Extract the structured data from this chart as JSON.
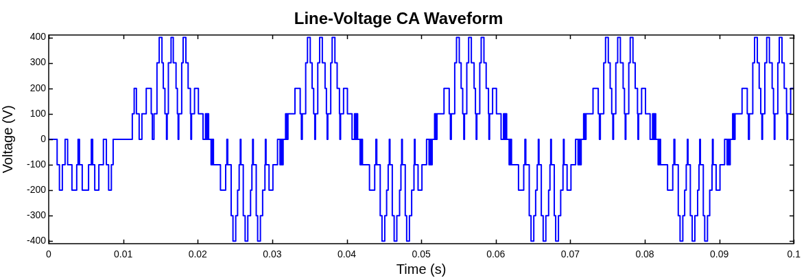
{
  "chart_data": {
    "type": "step",
    "title": "Line-Voltage CA Waveform",
    "xlabel": "Time (s)",
    "ylabel": "Voltage (V)",
    "color": "#0000ff",
    "xlim": [
      0,
      0.1
    ],
    "xticks": [
      0,
      0.01,
      0.02,
      0.03,
      0.04,
      0.05,
      0.06,
      0.07,
      0.08,
      0.09,
      0.1
    ],
    "ylim": [
      -410,
      410
    ],
    "yticks": [
      -400,
      -300,
      -200,
      -100,
      0,
      100,
      200,
      300,
      400
    ],
    "x": [
      0,
      0.00113,
      0.00144,
      0.00183,
      0.0022,
      0.00254,
      0.00312,
      0.00376,
      0.00394,
      0.00401,
      0.00407,
      0.00413,
      0.0045,
      0.00535,
      0.00572,
      0.00578,
      0.00584,
      0.0059,
      0.00618,
      0.00673,
      0.00734,
      0.00774,
      0.00804,
      0.00841,
      0.00865,
      0.01122,
      0.01147,
      0.01177,
      0.01214,
      0.01251,
      0.01309,
      0.01376,
      0.01391,
      0.01413,
      0.01453,
      0.01483,
      0.0152,
      0.01538,
      0.0156,
      0.01581,
      0.0159,
      0.01606,
      0.01642,
      0.01672,
      0.01709,
      0.01727,
      0.01737,
      0.01746,
      0.01785,
      0.01804,
      0.01841,
      0.01871,
      0.01902,
      0.01908,
      0.01917,
      0.01957,
      0.02009,
      0.02071,
      0.02104,
      0.02114,
      0.0212,
      0.0213,
      0.02136,
      0.02146,
      0.02179,
      0.02187,
      0.02195,
      0.02203,
      0.02211,
      0.02305,
      0.02375,
      0.02391,
      0.02403,
      0.02449,
      0.02473,
      0.0251,
      0.02535,
      0.02556,
      0.02571,
      0.0258,
      0.02611,
      0.02636,
      0.02672,
      0.02709,
      0.02727,
      0.02737,
      0.02746,
      0.02785,
      0.02804,
      0.02841,
      0.02871,
      0.02902,
      0.02908,
      0.02917,
      0.02957,
      0.03009,
      0.03071,
      0.03104,
      0.03114,
      0.0312,
      0.0313,
      0.03136,
      0.03146,
      0.03179,
      0.03187,
      0.03195,
      0.03203,
      0.03211,
      0.03305,
      0.03375,
      0.03391,
      0.03403,
      0.03449,
      0.03473,
      0.0351,
      0.03535,
      0.03556,
      0.03571,
      0.0358,
      0.03611,
      0.03636,
      0.03672,
      0.03709,
      0.03727,
      0.03737,
      0.03746,
      0.03785,
      0.03804,
      0.03841,
      0.03871,
      0.03902,
      0.03908,
      0.03917,
      0.03957,
      0.04009,
      0.04071,
      0.04104,
      0.04114,
      0.0412,
      0.0413,
      0.04136,
      0.04146,
      0.04179,
      0.04187,
      0.04195,
      0.04203,
      0.04211,
      0.04305,
      0.04375,
      0.04391,
      0.04403,
      0.04449,
      0.04473,
      0.0451,
      0.04535,
      0.04556,
      0.04571,
      0.0458,
      0.04611,
      0.04636,
      0.04672,
      0.04709,
      0.04727,
      0.04737,
      0.04746,
      0.04785,
      0.04804,
      0.04841,
      0.04871,
      0.04902,
      0.04908,
      0.04917,
      0.04957,
      0.05009,
      0.05071,
      0.05104,
      0.05114,
      0.0512,
      0.0513,
      0.05136,
      0.05146,
      0.05179,
      0.05187,
      0.05195,
      0.05203,
      0.05211,
      0.05305,
      0.05375,
      0.05391,
      0.05403,
      0.05449,
      0.05473,
      0.0551,
      0.05535,
      0.05556,
      0.05571,
      0.0558,
      0.05611,
      0.05636,
      0.05672,
      0.05709,
      0.05727,
      0.05737,
      0.05746,
      0.05785,
      0.05804,
      0.05841,
      0.05871,
      0.05902,
      0.05908,
      0.05917,
      0.05957,
      0.06009,
      0.06071,
      0.06104,
      0.06114,
      0.0612,
      0.0613,
      0.06136,
      0.06146,
      0.06179,
      0.06187,
      0.06195,
      0.06203,
      0.06211,
      0.06305,
      0.06375,
      0.06391,
      0.06403,
      0.06449,
      0.06473,
      0.0651,
      0.06535,
      0.06556,
      0.06571,
      0.0658,
      0.06611,
      0.06636,
      0.06672,
      0.06709,
      0.06727,
      0.06737,
      0.06746,
      0.06785,
      0.06804,
      0.06841,
      0.06871,
      0.06902,
      0.06908,
      0.06917,
      0.06957,
      0.07009,
      0.07071,
      0.07104,
      0.07114,
      0.0712,
      0.0713,
      0.07136,
      0.07146,
      0.07179,
      0.07187,
      0.07195,
      0.07203,
      0.07211,
      0.07305,
      0.07375,
      0.07391,
      0.07403,
      0.07449,
      0.07473,
      0.0751,
      0.07535,
      0.07556,
      0.07571,
      0.0758,
      0.07611,
      0.07636,
      0.07672,
      0.07709,
      0.07727,
      0.07737,
      0.07746,
      0.07785,
      0.07804,
      0.07841,
      0.07871,
      0.07902,
      0.07908,
      0.07917,
      0.07957,
      0.08009,
      0.08071,
      0.08104,
      0.08114,
      0.0812,
      0.0813,
      0.08136,
      0.08146,
      0.08179,
      0.08187,
      0.08195,
      0.08203,
      0.08211,
      0.08305,
      0.08375,
      0.08391,
      0.08403,
      0.08449,
      0.08473,
      0.0851,
      0.08535,
      0.08556,
      0.08571,
      0.0858,
      0.08611,
      0.08636,
      0.08672,
      0.08709,
      0.08727,
      0.08737,
      0.08746,
      0.08785,
      0.08804,
      0.08841,
      0.08871,
      0.08902,
      0.08908,
      0.08917,
      0.08957,
      0.09009,
      0.09071,
      0.09104,
      0.09114,
      0.0912,
      0.0913,
      0.09136,
      0.09146,
      0.09179,
      0.09187,
      0.09195,
      0.09203,
      0.09211,
      0.09305,
      0.09375,
      0.09391,
      0.09403,
      0.09449,
      0.09473,
      0.0951,
      0.09535,
      0.09556,
      0.09571,
      0.0958,
      0.09611,
      0.09636,
      0.09672,
      0.09709,
      0.09727,
      0.09737,
      0.09746,
      0.09785,
      0.09804,
      0.09841,
      0.09871,
      0.09902,
      0.09908,
      0.09917,
      0.09957,
      0.1
    ],
    "values": [
      0,
      -100,
      -200,
      -100,
      0,
      -100,
      -200,
      -100,
      0,
      -100,
      0,
      -100,
      -200,
      -100,
      0,
      -100,
      0,
      -100,
      -200,
      -100,
      0,
      -100,
      -200,
      -100,
      0,
      100,
      200,
      100,
      0,
      100,
      200,
      100,
      0,
      100,
      300,
      400,
      300,
      200,
      100,
      0,
      100,
      300,
      400,
      300,
      200,
      100,
      0,
      100,
      300,
      400,
      300,
      200,
      100,
      0,
      100,
      200,
      100,
      0,
      100,
      0,
      100,
      0,
      100,
      0,
      -100,
      0,
      -100,
      0,
      -100,
      -200,
      -100,
      0,
      -100,
      -300,
      -400,
      -300,
      -200,
      -100,
      0,
      -100,
      -300,
      -400,
      -300,
      -200,
      -100,
      0,
      -100,
      -300,
      -400,
      -300,
      -200,
      -100,
      0,
      -100,
      -200,
      -100,
      0,
      -100,
      0,
      -100,
      0,
      -100,
      0,
      100,
      0,
      100,
      0,
      100,
      200,
      100,
      0,
      100,
      300,
      400,
      300,
      200,
      100,
      0,
      100,
      300,
      400,
      300,
      200,
      100,
      0,
      100,
      300,
      400,
      300,
      200,
      100,
      0,
      100,
      200,
      100,
      0,
      100,
      0,
      100,
      0,
      100,
      0,
      -100,
      0,
      -100,
      0,
      -100,
      -200,
      -100,
      0,
      -100,
      -300,
      -400,
      -300,
      -200,
      -100,
      0,
      -100,
      -300,
      -400,
      -300,
      -200,
      -100,
      0,
      -100,
      -300,
      -400,
      -300,
      -200,
      -100,
      0,
      -100,
      -200,
      -100,
      0,
      -100,
      0,
      -100,
      0,
      -100,
      0,
      100,
      0,
      100,
      0,
      100,
      200,
      100,
      0,
      100,
      300,
      400,
      300,
      200,
      100,
      0,
      100,
      300,
      400,
      300,
      200,
      100,
      0,
      100,
      300,
      400,
      300,
      200,
      100,
      0,
      100,
      200,
      100,
      0,
      100,
      0,
      100,
      0,
      100,
      0,
      -100,
      0,
      -100,
      0,
      -100,
      -200,
      -100,
      0,
      -100,
      -300,
      -400,
      -300,
      -200,
      -100,
      0,
      -100,
      -300,
      -400,
      -300,
      -200,
      -100,
      0,
      -100,
      -300,
      -400,
      -300,
      -200,
      -100,
      0,
      -100,
      -200,
      -100,
      0,
      -100,
      0,
      -100,
      0,
      -100,
      0,
      100,
      0,
      100,
      0,
      100,
      200,
      100,
      0,
      100,
      300,
      400,
      300,
      200,
      100,
      0,
      100,
      300,
      400,
      300,
      200,
      100,
      0,
      100,
      300,
      400,
      300,
      200,
      100,
      0,
      100,
      200,
      100,
      0,
      100,
      0,
      100,
      0,
      100,
      0,
      -100,
      0,
      -100,
      0,
      -100,
      -200,
      -100,
      0,
      -100,
      -300,
      -400,
      -300,
      -200,
      -100,
      0,
      -100,
      -300,
      -400,
      -300,
      -200,
      -100,
      0,
      -100,
      -300,
      -400,
      -300,
      -200,
      -100,
      0,
      -100,
      -200,
      -100,
      0,
      -100,
      0,
      -100,
      0,
      -100,
      0,
      100,
      0,
      100,
      0,
      100,
      200,
      100,
      0,
      100,
      300,
      400,
      300,
      200,
      100,
      0,
      100,
      300,
      400,
      300,
      200,
      100,
      0,
      100,
      300,
      400,
      300,
      200,
      100,
      0,
      100,
      200,
      200
    ]
  }
}
